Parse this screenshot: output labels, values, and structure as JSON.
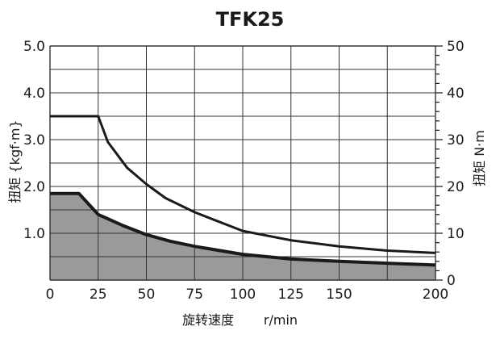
{
  "chart_data": {
    "type": "area",
    "title": "TFK25",
    "xlabel": "旋转速度",
    "xlabel_unit": "r/min",
    "ylabel_left": "扭矩 {kgf·m}",
    "ylabel_right": "扭矩 N·m",
    "xlim": [
      0,
      200
    ],
    "ylim_left": [
      0,
      5.0
    ],
    "ylim_right": [
      0,
      50
    ],
    "x_ticks": [
      "0",
      "25",
      "50",
      "75",
      "100",
      "125",
      "150",
      "200"
    ],
    "y_ticks_left": [
      "1.0",
      "2.0",
      "3.0",
      "4.0",
      "5.0"
    ],
    "y_ticks_right": [
      "0",
      "10",
      "20",
      "30",
      "40",
      "50"
    ],
    "grid": true,
    "series": [
      {
        "style": "line",
        "x": [
          0,
          25,
          30,
          40,
          50,
          60,
          75,
          100,
          125,
          150,
          175,
          200
        ],
        "y": [
          3.5,
          3.5,
          2.95,
          2.4,
          2.05,
          1.75,
          1.45,
          1.05,
          0.85,
          0.72,
          0.63,
          0.58
        ]
      },
      {
        "style": "filled",
        "x": [
          0,
          15,
          25,
          37.5,
          50,
          62.5,
          75,
          100,
          125,
          150,
          175,
          200
        ],
        "y": [
          1.85,
          1.85,
          1.4,
          1.17,
          0.97,
          0.83,
          0.72,
          0.55,
          0.45,
          0.4,
          0.36,
          0.32
        ]
      }
    ],
    "colors": {
      "line": "#1a1a1a",
      "fill": "#9a9a9a",
      "grid": "#333333"
    }
  }
}
